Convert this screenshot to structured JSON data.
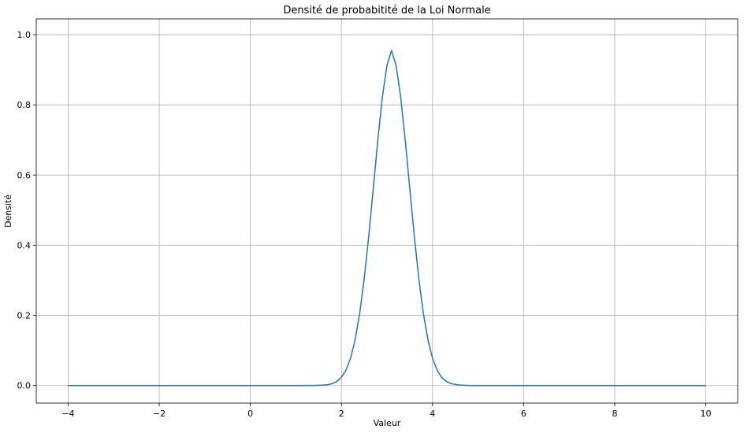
{
  "chart_data": {
    "type": "line",
    "title": "Densité de probabitité de la Loi Normale",
    "xlabel": "Valeur",
    "ylabel": "Densité",
    "xlim": [
      -4.7,
      10.7
    ],
    "ylim": [
      -0.05,
      1.045
    ],
    "xticks": [
      -4,
      -2,
      0,
      2,
      4,
      6,
      8,
      10
    ],
    "xtick_labels": [
      "−4",
      "−2",
      "0",
      "2",
      "4",
      "6",
      "8",
      "10"
    ],
    "yticks": [
      0.0,
      0.2,
      0.4,
      0.6,
      0.8,
      1.0
    ],
    "ytick_labels": [
      "0.0",
      "0.2",
      "0.4",
      "0.6",
      "0.8",
      "1.0"
    ],
    "grid": true,
    "series": [
      {
        "color": "#1f77b4",
        "x": [
          -4,
          0,
          1.0,
          1.2,
          1.4,
          1.6,
          1.7,
          1.8,
          1.9,
          2.0,
          2.1,
          2.2,
          2.3,
          2.4,
          2.5,
          2.6,
          2.7,
          2.8,
          2.9,
          3.0,
          3.1,
          3.2,
          3.3,
          3.4,
          3.5,
          3.6,
          3.7,
          3.8,
          3.9,
          4.0,
          4.1,
          4.2,
          4.3,
          4.4,
          4.6,
          4.8,
          5.0,
          6,
          10
        ],
        "y": [
          0.0,
          0.0,
          0.0,
          0.0001,
          0.0002,
          0.0012,
          0.0025,
          0.0056,
          0.0118,
          0.0234,
          0.0439,
          0.0779,
          0.13,
          0.2047,
          0.304,
          0.4258,
          0.5623,
          0.7005,
          0.8234,
          0.9128,
          0.955,
          0.9128,
          0.8234,
          0.7005,
          0.5623,
          0.4258,
          0.304,
          0.2047,
          0.13,
          0.0779,
          0.0439,
          0.0234,
          0.0118,
          0.0056,
          0.0012,
          0.0002,
          0.0,
          0.0,
          0.0
        ]
      }
    ]
  }
}
